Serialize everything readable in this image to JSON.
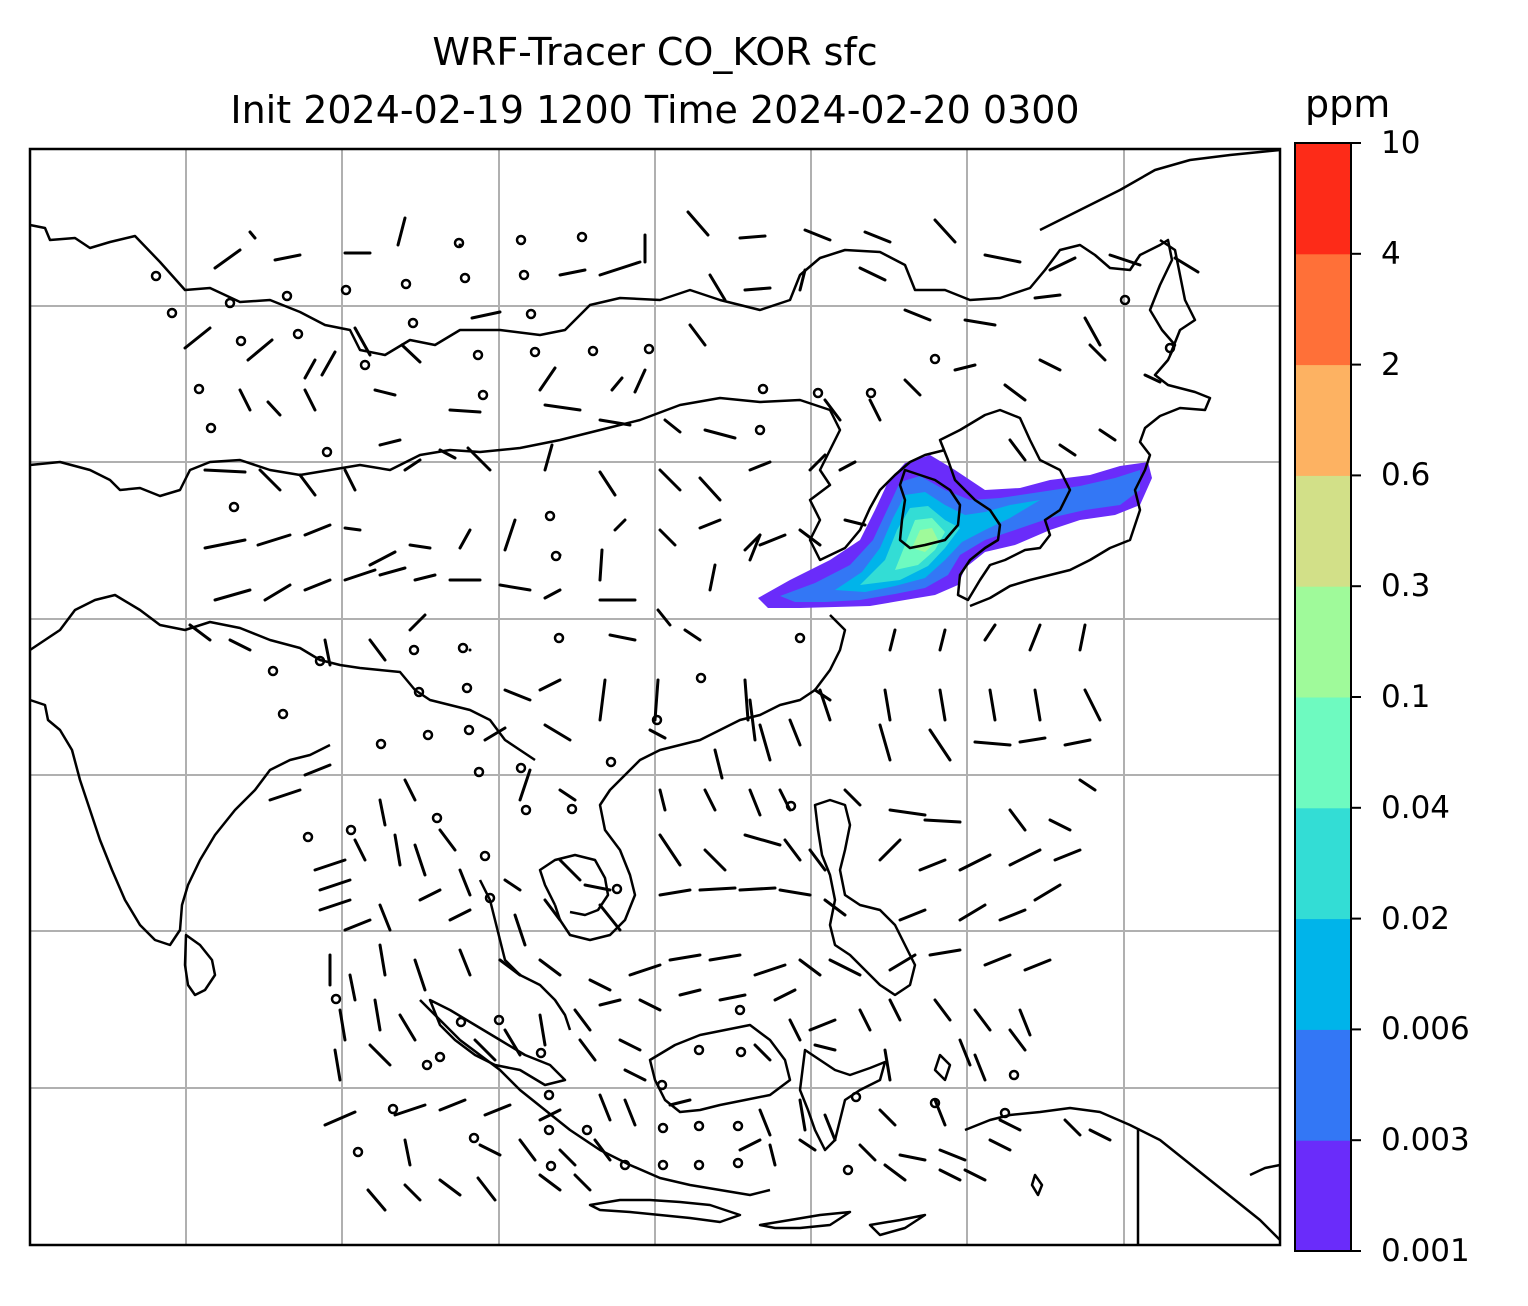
{
  "title": {
    "line1": "WRF-Tracer CO_KOR sfc",
    "line2": "Init 2024-02-19 1200 Time 2024-02-20 0300"
  },
  "colorbar": {
    "units": "ppm",
    "levels": [
      "0.001",
      "0.003",
      "0.006",
      "0.02",
      "0.04",
      "0.1",
      "0.3",
      "0.6",
      "2",
      "4",
      "10"
    ],
    "colors": [
      "#6a2cfa",
      "#3377f5",
      "#00b4ea",
      "#33ddd5",
      "#6efac0",
      "#9ffa9a",
      "#d2e088",
      "#fdb262",
      "#ff7038",
      "#fd2b18"
    ]
  },
  "map": {
    "variable": "CO_KOR tracer concentration (surface)",
    "plume_region": "Korean Peninsula eastward over Sea of Japan to northern Japan",
    "wind_barbs": true,
    "gridlines": true,
    "coastlines": true
  }
}
